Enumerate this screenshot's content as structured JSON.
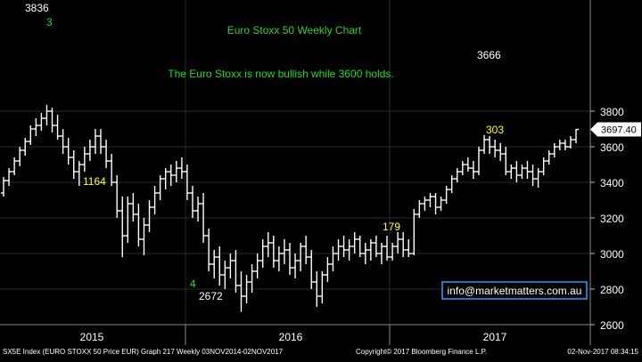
{
  "colors": {
    "background": "#000000",
    "bars": "#ffffff",
    "title": "#33cc33",
    "annotation_green": "#22dd22",
    "annotation_yellow": "#ffff33",
    "annotation_white": "#ffffff",
    "grid": "#2a2a2a",
    "axis_text": "#ffffff",
    "footer_text": "#ffffff",
    "email_border": "#3399ff",
    "email_text": "#ffffff"
  },
  "footer": {
    "left": "SX5E Index (EURO STOXX 50 Price EUR) Graph 217  Weekly 03NOV2014-02NOV2017",
    "center": "Copyright© 2017 Bloomberg Finance L.P.",
    "right": "02-Nov-2017 08:34:15"
  },
  "email": "info@marketmatters.com.au",
  "chart_data": {
    "type": "ohlc",
    "title": "Euro Stoxx 50 Weekly Chart",
    "subtitle": "The Euro Stoxx is now bullish while 3600 holds.",
    "xlabel": "",
    "ylabel": "",
    "ylim": [
      2600,
      3900
    ],
    "yticks": [
      2600,
      2800,
      3000,
      3200,
      3400,
      3600,
      3800
    ],
    "xtick_labels": [
      "2015",
      "2016",
      "2017"
    ],
    "last_price_label": "3697.40",
    "last_price": 3697.4,
    "grid": true,
    "annotations": [
      {
        "text": "3836",
        "color": "white",
        "price": 3836
      },
      {
        "text": "3",
        "color": "green"
      },
      {
        "text": "1164",
        "color": "yellow"
      },
      {
        "text": "4",
        "color": "green"
      },
      {
        "text": "2672",
        "color": "white",
        "price": 2672
      },
      {
        "text": "179",
        "color": "yellow"
      },
      {
        "text": "3666",
        "color": "white",
        "price": 3666
      },
      {
        "text": "303",
        "color": "yellow"
      }
    ],
    "series": [
      {
        "values": [
          [
            3340,
            3430,
            3320,
            3410
          ],
          [
            3410,
            3480,
            3380,
            3460
          ],
          [
            3460,
            3540,
            3440,
            3520
          ],
          [
            3520,
            3600,
            3490,
            3580
          ],
          [
            3580,
            3650,
            3550,
            3630
          ],
          [
            3630,
            3720,
            3610,
            3700
          ],
          [
            3700,
            3760,
            3660,
            3720
          ],
          [
            3720,
            3790,
            3690,
            3760
          ],
          [
            3760,
            3836,
            3720,
            3800
          ],
          [
            3800,
            3820,
            3680,
            3720
          ],
          [
            3720,
            3780,
            3640,
            3660
          ],
          [
            3660,
            3700,
            3560,
            3600
          ],
          [
            3600,
            3650,
            3500,
            3540
          ],
          [
            3540,
            3580,
            3420,
            3460
          ],
          [
            3460,
            3520,
            3380,
            3500
          ],
          [
            3500,
            3600,
            3460,
            3560
          ],
          [
            3560,
            3640,
            3520,
            3600
          ],
          [
            3600,
            3700,
            3560,
            3660
          ],
          [
            3660,
            3700,
            3560,
            3600
          ],
          [
            3600,
            3640,
            3480,
            3520
          ],
          [
            3520,
            3560,
            3380,
            3400
          ],
          [
            3400,
            3440,
            3200,
            3240
          ],
          [
            3240,
            3320,
            2980,
            3100
          ],
          [
            3100,
            3320,
            3060,
            3280
          ],
          [
            3280,
            3340,
            3180,
            3220
          ],
          [
            3220,
            3280,
            3040,
            3080
          ],
          [
            3080,
            3200,
            2990,
            3160
          ],
          [
            3160,
            3300,
            3120,
            3260
          ],
          [
            3260,
            3380,
            3220,
            3340
          ],
          [
            3340,
            3440,
            3300,
            3420
          ],
          [
            3420,
            3480,
            3360,
            3460
          ],
          [
            3460,
            3500,
            3380,
            3440
          ],
          [
            3440,
            3520,
            3400,
            3480
          ],
          [
            3480,
            3540,
            3420,
            3460
          ],
          [
            3460,
            3500,
            3300,
            3340
          ],
          [
            3340,
            3380,
            3200,
            3240
          ],
          [
            3240,
            3320,
            3180,
            3280
          ],
          [
            3280,
            3340,
            3060,
            3100
          ],
          [
            3100,
            3140,
            2900,
            2940
          ],
          [
            2940,
            3020,
            2860,
            2980
          ],
          [
            2980,
            3040,
            2820,
            2880
          ],
          [
            2880,
            2960,
            2800,
            2920
          ],
          [
            2920,
            3000,
            2860,
            2960
          ],
          [
            2960,
            3020,
            2780,
            2820
          ],
          [
            2820,
            2900,
            2672,
            2760
          ],
          [
            2760,
            2880,
            2720,
            2840
          ],
          [
            2840,
            2940,
            2780,
            2900
          ],
          [
            2900,
            3000,
            2860,
            2960
          ],
          [
            2960,
            3080,
            2920,
            3040
          ],
          [
            3040,
            3120,
            2980,
            3060
          ],
          [
            3060,
            3100,
            2920,
            2960
          ],
          [
            2960,
            3040,
            2900,
            3000
          ],
          [
            3000,
            3080,
            2940,
            3020
          ],
          [
            3020,
            3060,
            2880,
            2920
          ],
          [
            2920,
            3000,
            2860,
            2960
          ],
          [
            2960,
            3060,
            2900,
            3040
          ],
          [
            3040,
            3100,
            2940,
            2980
          ],
          [
            2980,
            3020,
            2800,
            2840
          ],
          [
            2840,
            2900,
            2700,
            2760
          ],
          [
            2760,
            2900,
            2720,
            2880
          ],
          [
            2880,
            2980,
            2840,
            2940
          ],
          [
            2940,
            3040,
            2900,
            3000
          ],
          [
            3000,
            3080,
            2960,
            3040
          ],
          [
            3040,
            3100,
            2980,
            3020
          ],
          [
            3020,
            3080,
            2960,
            3040
          ],
          [
            3040,
            3120,
            3000,
            3080
          ],
          [
            3080,
            3100,
            2980,
            3000
          ],
          [
            3000,
            3060,
            2940,
            3020
          ],
          [
            3020,
            3080,
            2960,
            3060
          ],
          [
            3060,
            3100,
            2980,
            3000
          ],
          [
            3000,
            3060,
            2940,
            3040
          ],
          [
            3040,
            3100,
            2960,
            2980
          ],
          [
            2980,
            3060,
            2960,
            3040
          ],
          [
            3040,
            3120,
            3000,
            3080
          ],
          [
            3080,
            3120,
            2980,
            3020
          ],
          [
            3020,
            3080,
            2980,
            3000
          ],
          [
            3000,
            3250,
            2990,
            3220
          ],
          [
            3220,
            3300,
            3200,
            3280
          ],
          [
            3280,
            3320,
            3240,
            3300
          ],
          [
            3300,
            3340,
            3260,
            3320
          ],
          [
            3320,
            3340,
            3220,
            3260
          ],
          [
            3260,
            3320,
            3240,
            3300
          ],
          [
            3300,
            3380,
            3280,
            3360
          ],
          [
            3360,
            3440,
            3340,
            3420
          ],
          [
            3420,
            3480,
            3400,
            3460
          ],
          [
            3460,
            3520,
            3440,
            3500
          ],
          [
            3500,
            3540,
            3460,
            3480
          ],
          [
            3480,
            3520,
            3420,
            3460
          ],
          [
            3460,
            3600,
            3440,
            3580
          ],
          [
            3580,
            3666,
            3560,
            3640
          ],
          [
            3640,
            3660,
            3560,
            3600
          ],
          [
            3600,
            3640,
            3540,
            3580
          ],
          [
            3580,
            3620,
            3520,
            3560
          ],
          [
            3560,
            3600,
            3440,
            3460
          ],
          [
            3460,
            3500,
            3420,
            3480
          ],
          [
            3480,
            3520,
            3400,
            3440
          ],
          [
            3440,
            3500,
            3420,
            3480
          ],
          [
            3480,
            3520,
            3420,
            3460
          ],
          [
            3460,
            3500,
            3380,
            3420
          ],
          [
            3420,
            3480,
            3370,
            3460
          ],
          [
            3460,
            3540,
            3440,
            3520
          ],
          [
            3520,
            3580,
            3500,
            3560
          ],
          [
            3560,
            3620,
            3540,
            3600
          ],
          [
            3600,
            3640,
            3580,
            3620
          ],
          [
            3620,
            3640,
            3580,
            3600
          ],
          [
            3600,
            3660,
            3590,
            3640
          ],
          [
            3640,
            3700,
            3620,
            3697.4
          ]
        ]
      }
    ]
  }
}
